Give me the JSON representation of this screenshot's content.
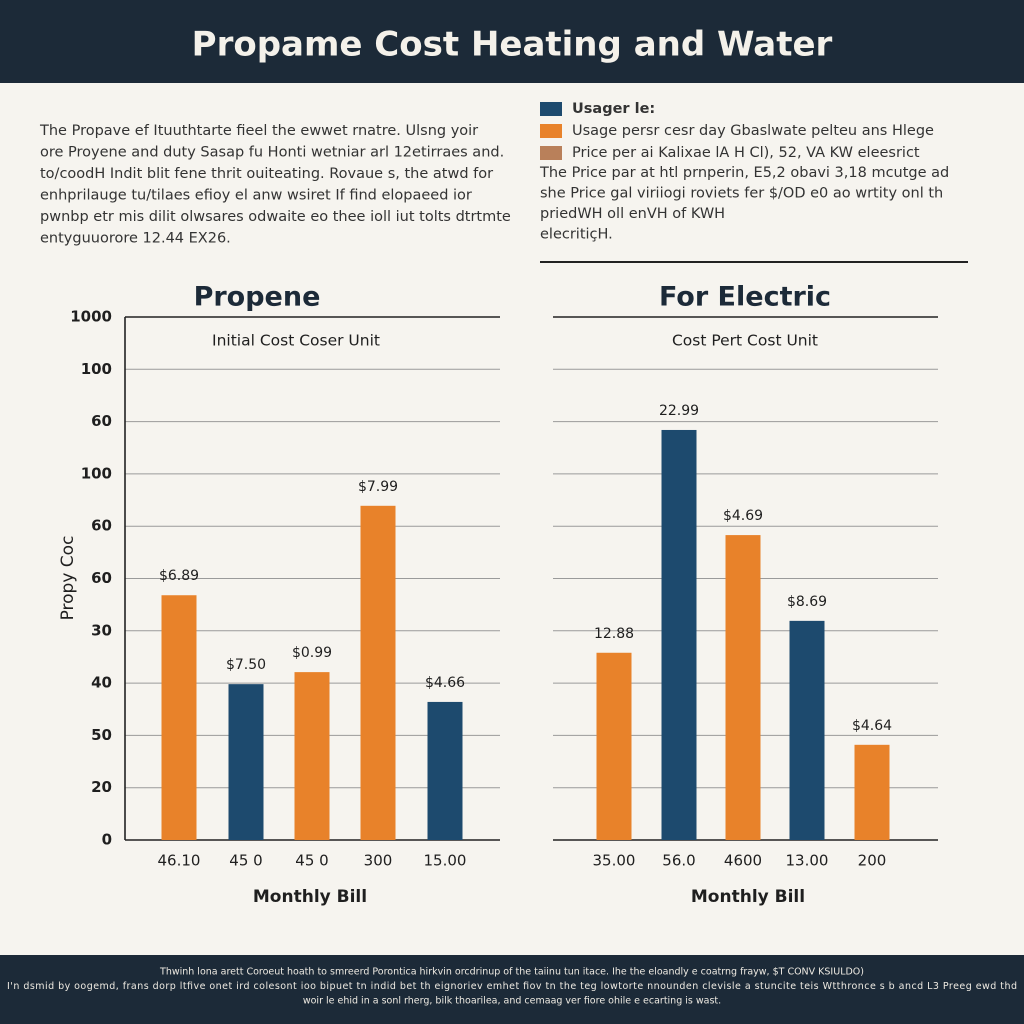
{
  "header": {
    "title": "Propame Cost Heating and Water"
  },
  "intro": {
    "lines": [
      "The Propave ef Ituuthtarte fieel the ewwet rnatre. Ulsng yoir",
      "ore Proyene and duty Sasap fu Honti wetniar arl 12etirraes and.",
      "to/coodH Indit blit fene thrit ouiteating. Rovaue s, the atwd for",
      "enhprilauge tu/tilaes efioy el anw wsiret If find elopaeed ior",
      "pwnbp etr mis dilit olwsares odwaite eo thee ioll iut tolts dtrtmte",
      "entyguuorore 12.44 EX26."
    ]
  },
  "legend": {
    "items": [
      {
        "label": "Usager le:",
        "color": "#1d4a6e"
      },
      {
        "label": "Usage persr cesr day Gbaslwate pelteu ans Hlege",
        "color": "#e8822a"
      },
      {
        "label": "Price per ai Kalixae lA H Cl), 52, VA KW eleesrict",
        "color": "#b9805a"
      }
    ],
    "lines": [
      "The Price par at htl prnperin, E5,2 obavi 3,18 mcutge ad",
      "she Price gal viriiogi roviets fer $/OD e0 ao wrtity onl th",
      "priedWH oll enVH of KWH",
      "elecritiçH."
    ]
  },
  "chart_data": [
    {
      "type": "bar",
      "title": "Propene",
      "subtitle": "Initial Cost Coser Unit",
      "y_label": "Propy Coc",
      "x_label": "Monthly Bill",
      "categories": [
        "46.10",
        "45 0",
        "45 0",
        "300",
        "15.00"
      ],
      "values": [
        4.68,
        2.98,
        3.21,
        6.39,
        2.64
      ],
      "bar_labels": [
        "$6.89",
        "$7.50",
        "$0.99",
        "$7.99",
        "$4.66"
      ],
      "colors": [
        "#e8822a",
        "#1d4a6e",
        "#e8822a",
        "#e8822a",
        "#1d4a6e"
      ],
      "ylim": [
        0,
        10
      ],
      "yticks": [
        {
          "value": 0,
          "label": "0"
        },
        {
          "value": 1,
          "label": "20"
        },
        {
          "value": 2,
          "label": "50"
        },
        {
          "value": 3,
          "label": "40"
        },
        {
          "value": 4,
          "label": "30"
        },
        {
          "value": 5,
          "label": "60"
        },
        {
          "value": 6,
          "label": "60"
        },
        {
          "value": 7,
          "label": "100"
        },
        {
          "value": 8,
          "label": "60"
        },
        {
          "value": 9,
          "label": "100"
        },
        {
          "value": 10,
          "label": "1000"
        }
      ],
      "show_tick_labels": true,
      "grid": true
    },
    {
      "type": "bar",
      "title": "For Electric",
      "subtitle": "Cost Pert Cost Unit",
      "x_label": "Monthly Bill",
      "categories": [
        "35.00",
        "56.0",
        "4600",
        "13.00",
        "200"
      ],
      "values": [
        3.58,
        7.84,
        5.83,
        4.19,
        1.82
      ],
      "bar_labels": [
        "12.88",
        "22.99",
        "$4.69",
        "$8.69",
        "$4.64"
      ],
      "colors": [
        "#e8822a",
        "#1d4a6e",
        "#e8822a",
        "#1d4a6e",
        "#e8822a"
      ],
      "ylim": [
        0,
        10
      ],
      "yticks": [
        0,
        1,
        2,
        3,
        4,
        5,
        6,
        7,
        8,
        9,
        10
      ],
      "show_tick_labels": false,
      "grid": true
    }
  ],
  "footer": {
    "lines": [
      "Thwinh lona arett Coroeut hoath to smreerd Porontica hirkvin orcdrinup of the taiinu tun itace. Ihe the eloandly e coatrng frayw, $T CONV KSIULDO)",
      "I'n dsmid by oogemd, frans dorp ltfive onet ird colesont ioo bipuet tn indid bet th eignoriev emhet fiov tn the teg lowtorte nnounden clevisle a stuncite teis Wtthronce s b ancd L3 Preeg ewd thd",
      "woir le ehid in a sonl rherg, bilk  thoarilea, and cemaag ver fiore ohile e ecarting is wast."
    ]
  }
}
